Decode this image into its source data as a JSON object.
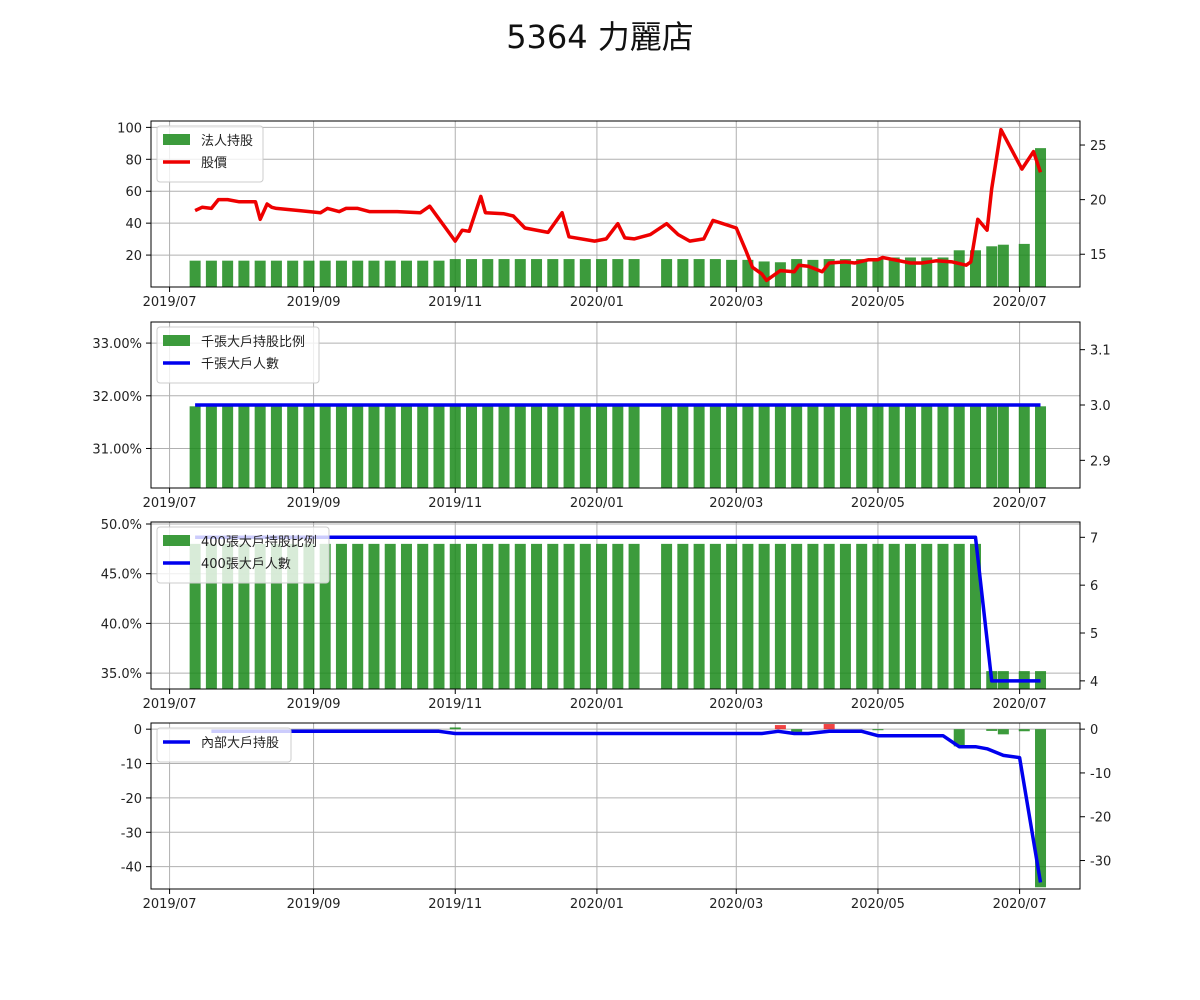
{
  "title": "5364 力麗店",
  "colors": {
    "bar": "#1a8a1a",
    "price_line": "#ee0000",
    "holder_line": "#0000ee",
    "negative_bar": "#ee2222",
    "grid": "#b0b0b0",
    "frame": "#000000"
  },
  "x_axis": {
    "ticks": [
      "2019/07",
      "2019/09",
      "2019/11",
      "2020/01",
      "2020/03",
      "2020/05",
      "2020/07"
    ],
    "tick_dates": [
      "2019-07-01",
      "2019-09-01",
      "2019-11-01",
      "2020-01-01",
      "2020-03-01",
      "2020-05-01",
      "2020-07-01"
    ],
    "range": [
      "2019-06-23",
      "2020-07-27"
    ]
  },
  "chart_data": [
    {
      "type": "bar+line",
      "grid": true,
      "legend_position": "top-left",
      "left_axis": {
        "ylim": [
          0,
          104
        ],
        "ticks": [
          "20",
          "40",
          "60",
          "80",
          "100"
        ],
        "tick_values": [
          20,
          40,
          60,
          80,
          100
        ]
      },
      "right_axis": {
        "ylim": [
          12,
          27.2
        ],
        "ticks": [
          "15",
          "20",
          "25"
        ],
        "tick_values": [
          15,
          20,
          25
        ]
      },
      "series": [
        {
          "name": "法人持股",
          "kind": "bar",
          "axis": "left",
          "x": [
            "2019-07-12",
            "2019-07-19",
            "2019-07-26",
            "2019-08-02",
            "2019-08-09",
            "2019-08-16",
            "2019-08-23",
            "2019-08-30",
            "2019-09-06",
            "2019-09-13",
            "2019-09-20",
            "2019-09-27",
            "2019-10-04",
            "2019-10-11",
            "2019-10-18",
            "2019-10-25",
            "2019-11-01",
            "2019-11-08",
            "2019-11-15",
            "2019-11-22",
            "2019-11-29",
            "2019-12-06",
            "2019-12-13",
            "2019-12-20",
            "2019-12-27",
            "2020-01-03",
            "2020-01-10",
            "2020-01-17",
            "2020-01-31",
            "2020-02-07",
            "2020-02-14",
            "2020-02-21",
            "2020-02-28",
            "2020-03-06",
            "2020-03-13",
            "2020-03-20",
            "2020-03-27",
            "2020-04-03",
            "2020-04-10",
            "2020-04-17",
            "2020-04-24",
            "2020-05-01",
            "2020-05-08",
            "2020-05-15",
            "2020-05-22",
            "2020-05-29",
            "2020-06-05",
            "2020-06-12",
            "2020-06-19",
            "2020-06-24",
            "2020-07-03",
            "2020-07-10"
          ],
          "values": [
            16.5,
            16.5,
            16.5,
            16.5,
            16.5,
            16.5,
            16.5,
            16.5,
            16.5,
            16.5,
            16.5,
            16.5,
            16.5,
            16.5,
            16.5,
            16.5,
            17.5,
            17.5,
            17.5,
            17.5,
            17.5,
            17.5,
            17.5,
            17.5,
            17.5,
            17.5,
            17.5,
            17.5,
            17.5,
            17.5,
            17.5,
            17.5,
            17,
            17,
            16,
            15.5,
            17.5,
            17,
            17.5,
            17.5,
            17.5,
            18,
            18.5,
            18.5,
            18.5,
            18.5,
            23,
            23,
            25.5,
            26.5,
            27,
            87
          ]
        },
        {
          "name": "股價",
          "kind": "line",
          "axis": "right",
          "x": [
            "2019-07-12",
            "2019-07-15",
            "2019-07-19",
            "2019-07-22",
            "2019-07-26",
            "2019-07-31",
            "2019-08-07",
            "2019-08-09",
            "2019-08-12",
            "2019-08-14",
            "2019-08-16",
            "2019-08-26",
            "2019-09-04",
            "2019-09-07",
            "2019-09-12",
            "2019-09-15",
            "2019-09-20",
            "2019-09-25",
            "2019-10-07",
            "2019-10-17",
            "2019-10-21",
            "2019-11-01",
            "2019-11-04",
            "2019-11-07",
            "2019-11-12",
            "2019-11-14",
            "2019-11-22",
            "2019-11-26",
            "2019-12-01",
            "2019-12-11",
            "2019-12-17",
            "2019-12-20",
            "2019-12-31",
            "2020-01-05",
            "2020-01-10",
            "2020-01-13",
            "2020-01-17",
            "2020-01-24",
            "2020-01-31",
            "2020-02-05",
            "2020-02-10",
            "2020-02-16",
            "2020-02-20",
            "2020-03-01",
            "2020-03-05",
            "2020-03-08",
            "2020-03-12",
            "2020-03-14",
            "2020-03-20",
            "2020-03-26",
            "2020-03-28",
            "2020-04-01",
            "2020-04-07",
            "2020-04-10",
            "2020-04-17",
            "2020-04-21",
            "2020-04-27",
            "2020-05-01",
            "2020-05-03",
            "2020-05-15",
            "2020-05-20",
            "2020-05-26",
            "2020-06-02",
            "2020-06-08",
            "2020-06-10",
            "2020-06-13",
            "2020-06-17",
            "2020-06-19",
            "2020-06-23",
            "2020-06-28",
            "2020-07-02",
            "2020-07-07",
            "2020-07-10"
          ],
          "values": [
            19,
            19.3,
            19.2,
            20,
            20,
            19.8,
            19.8,
            18.2,
            19.6,
            19.3,
            19.2,
            19,
            18.8,
            19.2,
            18.9,
            19.2,
            19.2,
            18.9,
            18.9,
            18.8,
            19.4,
            16.2,
            17.2,
            17.1,
            20.3,
            18.8,
            18.7,
            18.5,
            17.4,
            17,
            18.8,
            16.6,
            16.2,
            16.4,
            17.8,
            16.5,
            16.4,
            16.8,
            17.8,
            16.8,
            16.2,
            16.4,
            18.1,
            17.4,
            15.4,
            13.8,
            13.2,
            12.6,
            13.5,
            13.4,
            14,
            13.9,
            13.4,
            14.2,
            14.3,
            14.2,
            14.5,
            14.5,
            14.7,
            14.2,
            14.2,
            14.4,
            14.3,
            14,
            14.3,
            18.2,
            17.2,
            21,
            26.4,
            24.4,
            22.8,
            24.4,
            22.5
          ]
        }
      ]
    },
    {
      "type": "bar+line",
      "grid": true,
      "legend_position": "top-left",
      "left_axis": {
        "ylim": [
          30.25,
          33.4
        ],
        "ticks": [
          "31.00%",
          "32.00%",
          "33.00%"
        ],
        "tick_values": [
          31,
          32,
          33
        ]
      },
      "right_axis": {
        "ylim": [
          2.85,
          3.15
        ],
        "ticks": [
          "2.9",
          "3.0",
          "3.1"
        ],
        "tick_values": [
          2.9,
          3.0,
          3.1
        ]
      },
      "series": [
        {
          "name": "千張大戶持股比例",
          "kind": "bar",
          "axis": "left",
          "x": [
            "2019-07-12",
            "2019-07-19",
            "2019-07-26",
            "2019-08-02",
            "2019-08-09",
            "2019-08-16",
            "2019-08-23",
            "2019-08-30",
            "2019-09-06",
            "2019-09-13",
            "2019-09-20",
            "2019-09-27",
            "2019-10-04",
            "2019-10-11",
            "2019-10-18",
            "2019-10-25",
            "2019-11-01",
            "2019-11-08",
            "2019-11-15",
            "2019-11-22",
            "2019-11-29",
            "2019-12-06",
            "2019-12-13",
            "2019-12-20",
            "2019-12-27",
            "2020-01-03",
            "2020-01-10",
            "2020-01-17",
            "2020-01-31",
            "2020-02-07",
            "2020-02-14",
            "2020-02-21",
            "2020-02-28",
            "2020-03-06",
            "2020-03-13",
            "2020-03-20",
            "2020-03-27",
            "2020-04-03",
            "2020-04-10",
            "2020-04-17",
            "2020-04-24",
            "2020-05-01",
            "2020-05-08",
            "2020-05-15",
            "2020-05-22",
            "2020-05-29",
            "2020-06-05",
            "2020-06-12",
            "2020-06-19",
            "2020-06-24",
            "2020-07-03",
            "2020-07-10"
          ],
          "values": [
            31.8,
            31.8,
            31.8,
            31.8,
            31.8,
            31.8,
            31.8,
            31.8,
            31.8,
            31.8,
            31.8,
            31.8,
            31.8,
            31.8,
            31.8,
            31.8,
            31.8,
            31.8,
            31.8,
            31.8,
            31.8,
            31.8,
            31.8,
            31.8,
            31.8,
            31.8,
            31.8,
            31.8,
            31.8,
            31.8,
            31.8,
            31.8,
            31.8,
            31.8,
            31.8,
            31.8,
            31.8,
            31.8,
            31.8,
            31.8,
            31.8,
            31.8,
            31.8,
            31.8,
            31.8,
            31.8,
            31.8,
            31.8,
            31.8,
            31.8,
            31.8,
            31.8
          ]
        },
        {
          "name": "千張大戶人數",
          "kind": "line",
          "axis": "right",
          "x": [
            "2019-07-12",
            "2020-07-10"
          ],
          "values": [
            3,
            3
          ]
        }
      ]
    },
    {
      "type": "bar+line",
      "grid": true,
      "legend_position": "top-left",
      "left_axis": {
        "ylim": [
          33.4,
          50.2
        ],
        "ticks": [
          "35.0%",
          "40.0%",
          "45.0%",
          "50.0%"
        ],
        "tick_values": [
          35,
          40,
          45,
          50
        ]
      },
      "right_axis": {
        "ylim": [
          3.83,
          7.32
        ],
        "ticks": [
          "4",
          "5",
          "6",
          "7"
        ],
        "tick_values": [
          4,
          5,
          6,
          7
        ]
      },
      "series": [
        {
          "name": "400張大戶持股比例",
          "kind": "bar",
          "axis": "left",
          "x": [
            "2019-07-12",
            "2019-07-19",
            "2019-07-26",
            "2019-08-02",
            "2019-08-09",
            "2019-08-16",
            "2019-08-23",
            "2019-08-30",
            "2019-09-06",
            "2019-09-13",
            "2019-09-20",
            "2019-09-27",
            "2019-10-04",
            "2019-10-11",
            "2019-10-18",
            "2019-10-25",
            "2019-11-01",
            "2019-11-08",
            "2019-11-15",
            "2019-11-22",
            "2019-11-29",
            "2019-12-06",
            "2019-12-13",
            "2019-12-20",
            "2019-12-27",
            "2020-01-03",
            "2020-01-10",
            "2020-01-17",
            "2020-01-31",
            "2020-02-07",
            "2020-02-14",
            "2020-02-21",
            "2020-02-28",
            "2020-03-06",
            "2020-03-13",
            "2020-03-20",
            "2020-03-27",
            "2020-04-03",
            "2020-04-10",
            "2020-04-17",
            "2020-04-24",
            "2020-05-01",
            "2020-05-08",
            "2020-05-15",
            "2020-05-22",
            "2020-05-29",
            "2020-06-05",
            "2020-06-12",
            "2020-06-19",
            "2020-06-24",
            "2020-07-03",
            "2020-07-10"
          ],
          "values": [
            48,
            48,
            48,
            48,
            48,
            48,
            48,
            48,
            48,
            48,
            48,
            48,
            48,
            48,
            48,
            48,
            48,
            48,
            48,
            48,
            48,
            48,
            48,
            48,
            48,
            48,
            48,
            48,
            48,
            48,
            48,
            48,
            48,
            48,
            48,
            48,
            48,
            48,
            48,
            48,
            48,
            48,
            48,
            48,
            48,
            48,
            48,
            48,
            35.2,
            35.2,
            35.2,
            35.2
          ]
        },
        {
          "name": "400張大戶人數",
          "kind": "line",
          "axis": "right",
          "x": [
            "2019-07-12",
            "2020-06-12",
            "2020-06-19",
            "2020-07-10"
          ],
          "values": [
            7,
            7,
            4,
            4
          ]
        }
      ]
    },
    {
      "type": "bar+line",
      "grid": true,
      "legend_position": "top-left",
      "left_axis": {
        "ylim": [
          -46.5,
          1.8
        ],
        "ticks": [
          "0",
          "-10",
          "-20",
          "-30",
          "-40"
        ],
        "tick_values": [
          0,
          -10,
          -20,
          -30,
          -40
        ]
      },
      "right_axis": {
        "ylim": [
          -36.5,
          1.4
        ],
        "ticks": [
          "0",
          "-10",
          "-20",
          "-30"
        ],
        "tick_values": [
          0,
          -10,
          -20,
          -30
        ]
      },
      "series": [
        {
          "name": "",
          "kind": "bar",
          "axis": "left",
          "x": [
            "2019-11-01",
            "2020-03-20",
            "2020-03-27",
            "2020-04-10",
            "2020-05-01",
            "2020-06-05",
            "2020-06-19",
            "2020-06-24",
            "2020-07-03",
            "2020-07-10"
          ],
          "values": [
            0.5,
            1.2,
            -0.8,
            1.5,
            -0.3,
            -5,
            -0.5,
            -1.5,
            -0.6,
            -46
          ]
        },
        {
          "name": "內部大戶持股",
          "kind": "line",
          "axis": "right",
          "x": [
            "2019-07-19",
            "2019-10-25",
            "2019-11-01",
            "2020-03-12",
            "2020-03-19",
            "2020-03-26",
            "2020-04-01",
            "2020-04-10",
            "2020-04-24",
            "2020-05-01",
            "2020-05-29",
            "2020-06-05",
            "2020-06-12",
            "2020-06-17",
            "2020-06-24",
            "2020-07-01",
            "2020-07-10"
          ],
          "values": [
            -0.5,
            -0.5,
            -1,
            -1,
            -0.5,
            -1,
            -1,
            -0.5,
            -0.5,
            -1.5,
            -1.5,
            -4,
            -4,
            -4.5,
            -6,
            -6.5,
            -35
          ]
        }
      ]
    }
  ]
}
